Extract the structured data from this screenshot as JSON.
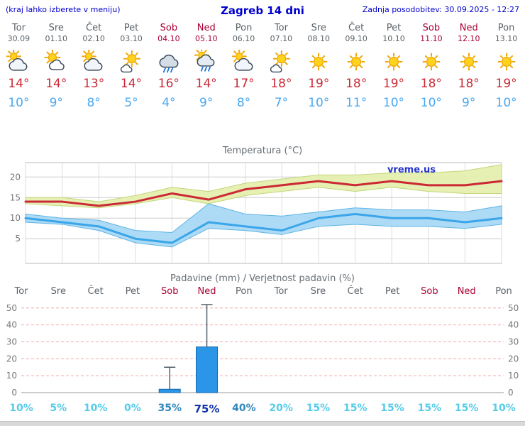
{
  "header": {
    "hint": "(kraj lahko izberete v meniju)",
    "title": "Zagreb 14 dni",
    "updated": "Zadnja posodobitev: 30.09.2025 - 12:27"
  },
  "colors": {
    "accent_blue": "#0000cc",
    "weekend_red": "#aa0033",
    "high_temp_red": "#cc2936",
    "low_temp_blue": "#4aa8ef",
    "bar_blue": "#2b96e8"
  },
  "forecast": {
    "days": [
      {
        "name": "Tor",
        "date": "30.09",
        "weekend": false,
        "icon": "cloud-sun-icon",
        "high": "14°",
        "low": "10°"
      },
      {
        "name": "Sre",
        "date": "01.10",
        "weekend": false,
        "icon": "sun-cloud-icon",
        "high": "14°",
        "low": "9°"
      },
      {
        "name": "Čet",
        "date": "02.10",
        "weekend": false,
        "icon": "cloud-sun-icon",
        "high": "13°",
        "low": "8°"
      },
      {
        "name": "Pet",
        "date": "03.10",
        "weekend": false,
        "icon": "sun-small-cloud-icon",
        "high": "14°",
        "low": "5°"
      },
      {
        "name": "Sob",
        "date": "04.10",
        "weekend": true,
        "icon": "rain-cloud-icon",
        "high": "16°",
        "low": "4°"
      },
      {
        "name": "Ned",
        "date": "05.10",
        "weekend": true,
        "icon": "sun-rain-cloud-icon",
        "high": "14°",
        "low": "9°"
      },
      {
        "name": "Pon",
        "date": "06.10",
        "weekend": false,
        "icon": "cloud-sun-icon",
        "high": "17°",
        "low": "8°"
      },
      {
        "name": "Tor",
        "date": "07.10",
        "weekend": false,
        "icon": "sun-small-cloud-icon",
        "high": "18°",
        "low": "7°"
      },
      {
        "name": "Sre",
        "date": "08.10",
        "weekend": false,
        "icon": "sun-icon",
        "high": "19°",
        "low": "10°"
      },
      {
        "name": "Čet",
        "date": "09.10",
        "weekend": false,
        "icon": "sun-icon",
        "high": "18°",
        "low": "11°"
      },
      {
        "name": "Pet",
        "date": "10.10",
        "weekend": false,
        "icon": "sun-icon",
        "high": "19°",
        "low": "10°"
      },
      {
        "name": "Sob",
        "date": "11.10",
        "weekend": true,
        "icon": "sun-icon",
        "high": "18°",
        "low": "10°"
      },
      {
        "name": "Ned",
        "date": "12.10",
        "weekend": true,
        "icon": "sun-icon",
        "high": "18°",
        "low": "9°"
      },
      {
        "name": "Pon",
        "date": "13.10",
        "weekend": false,
        "icon": "sun-icon",
        "high": "19°",
        "low": "10°"
      }
    ]
  },
  "chart_data": [
    {
      "type": "line",
      "title": "Temperatura (°C)",
      "watermark": "vreme.us",
      "yticks": [
        5,
        10,
        15,
        20
      ],
      "ylim": [
        -1,
        23.5
      ],
      "x_labels": [
        "Tor",
        "Sre",
        "Čet",
        "Pet",
        "Sob",
        "Ned",
        "Pon",
        "Tor",
        "Sre",
        "Čet",
        "Pet",
        "Sob",
        "Ned",
        "Pon"
      ],
      "series": [
        {
          "name": "max-temp",
          "color": "#cc2936",
          "values": [
            14,
            14,
            13,
            14,
            16,
            14.5,
            17,
            18,
            19,
            18,
            19,
            18,
            18,
            19
          ]
        },
        {
          "name": "min-temp",
          "color": "#3aa5e8",
          "values": [
            10,
            9,
            8,
            5,
            4,
            9,
            8,
            7,
            10,
            11,
            10,
            10,
            9,
            10
          ]
        }
      ],
      "bands": [
        {
          "name": "max-temp-range",
          "fill": "#e4efae",
          "edge": "#c2d77d",
          "upper": [
            15,
            15,
            14,
            15.5,
            17.5,
            16.5,
            18.5,
            19.5,
            20.5,
            20.5,
            21,
            21,
            21.5,
            23
          ],
          "lower": [
            13.5,
            13,
            12.5,
            13.5,
            15,
            13.5,
            15.5,
            16.5,
            17.5,
            16.5,
            17.5,
            16.5,
            16,
            16
          ]
        },
        {
          "name": "min-temp-range",
          "fill": "#a9d9f5",
          "edge": "#5fb4e4",
          "upper": [
            11,
            10,
            9.5,
            7,
            6.5,
            13.5,
            11,
            10.5,
            11.5,
            12.5,
            12,
            12,
            11.5,
            13
          ],
          "lower": [
            9,
            8.5,
            7,
            4,
            3,
            7.5,
            7,
            6,
            8,
            8.5,
            8,
            8,
            7.5,
            8.5
          ]
        }
      ]
    },
    {
      "type": "bar",
      "title": "Padavine (mm) / Verjetnost padavin (%)",
      "categories": [
        {
          "label": "Tor",
          "weekend": false
        },
        {
          "label": "Sre",
          "weekend": false
        },
        {
          "label": "Čet",
          "weekend": false
        },
        {
          "label": "Pet",
          "weekend": false
        },
        {
          "label": "Sob",
          "weekend": true
        },
        {
          "label": "Ned",
          "weekend": true
        },
        {
          "label": "Pon",
          "weekend": false
        },
        {
          "label": "Tor",
          "weekend": false
        },
        {
          "label": "Sre",
          "weekend": false
        },
        {
          "label": "Čet",
          "weekend": false
        },
        {
          "label": "Pet",
          "weekend": false
        },
        {
          "label": "Sob",
          "weekend": true
        },
        {
          "label": "Ned",
          "weekend": true
        },
        {
          "label": "Pon",
          "weekend": false
        }
      ],
      "values": [
        0,
        0,
        0,
        0,
        2,
        27,
        0,
        0,
        0,
        0,
        0,
        0,
        0,
        0
      ],
      "whiskers": [
        null,
        null,
        null,
        null,
        15,
        52,
        null,
        null,
        null,
        null,
        null,
        null,
        null,
        null
      ],
      "probabilities": [
        "10%",
        "5%",
        "10%",
        "0%",
        "35%",
        "75%",
        "40%",
        "20%",
        "15%",
        "15%",
        "15%",
        "15%",
        "15%",
        "10%"
      ],
      "yticks": [
        0,
        10,
        20,
        30,
        40,
        50
      ],
      "ylim": [
        0,
        52
      ],
      "bar_color": "#2b96e8"
    }
  ]
}
